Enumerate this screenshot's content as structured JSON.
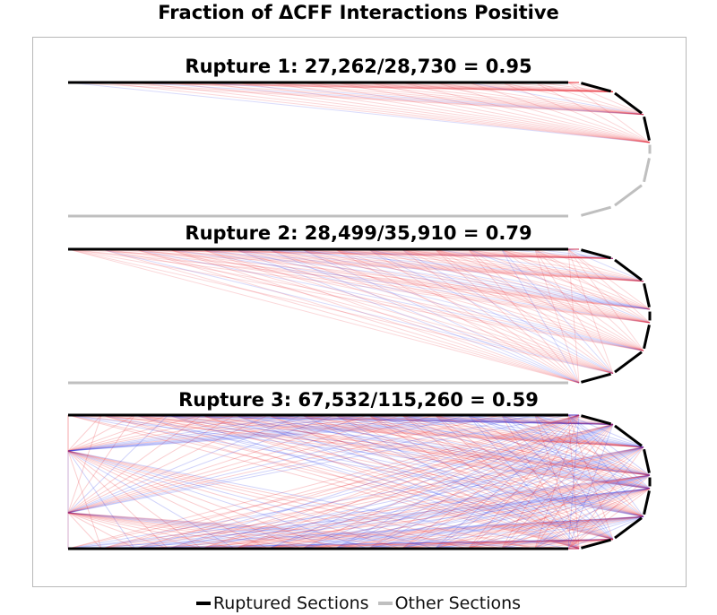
{
  "title": "Fraction of ΔCFF Interactions Positive",
  "colors": {
    "ruptured": "#000000",
    "other": "#bfbfbf",
    "positive": "#e8202a",
    "negative": "#2a36e8",
    "frame": "#b8b8b8"
  },
  "ruptures": [
    {
      "label": "Rupture 1: 27,262/28,730 = 0.95",
      "fraction_positive": 0.95,
      "positive": 27262,
      "total": 28730
    },
    {
      "label": "Rupture 2: 28,499/35,910 = 0.79",
      "fraction_positive": 0.79,
      "positive": 28499,
      "total": 35910
    },
    {
      "label": "Rupture 3: 67,532/115,260 = 0.59",
      "fraction_positive": 0.59,
      "positive": 67532,
      "total": 115260
    }
  ],
  "legend": [
    {
      "label": "Ruptured Sections",
      "color": "#000000"
    },
    {
      "label": "Other Sections",
      "color": "#bfbfbf"
    }
  ]
}
